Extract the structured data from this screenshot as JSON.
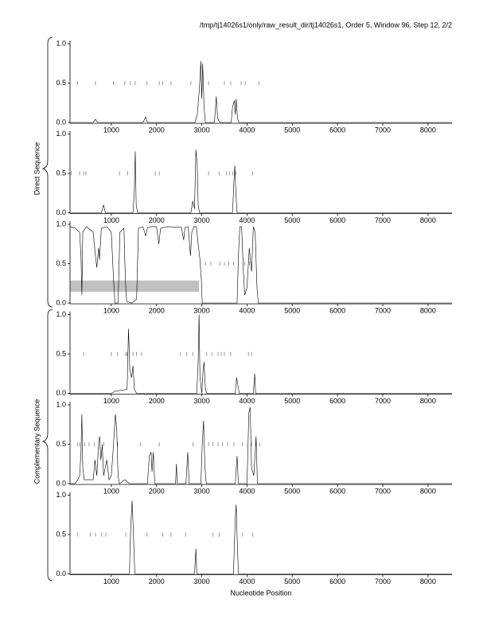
{
  "title": "/tmp/tj14026s1/only/raw_result_dir/tj14026s1, Order 5, Window 96, Step 12, 2/2",
  "xlabel": "Nucleotide Position",
  "groups": [
    {
      "label": "Direct Sequence"
    },
    {
      "label": "Complementary Sequence"
    }
  ],
  "chart_data": [
    {
      "type": "line",
      "color": "#000000",
      "xlim": [
        88,
        8530
      ],
      "ylim": [
        0,
        1
      ],
      "xticks": [
        1000,
        2000,
        3000,
        4000,
        5000,
        6000,
        7000,
        8000
      ],
      "yticks": [
        {
          "value": 0,
          "label": "0.0"
        },
        {
          "value": 0.5,
          "label": "0.5"
        },
        {
          "value": 1,
          "label": "1.0"
        }
      ],
      "x": [
        88,
        600,
        650,
        700,
        1700,
        1760,
        1800,
        2850,
        2900,
        2950,
        2980,
        3000,
        3020,
        3050,
        3080,
        3280,
        3320,
        3350,
        3400,
        3650,
        3680,
        3720,
        3740,
        3760,
        3790,
        3820,
        8530
      ],
      "values": [
        0,
        0,
        0.04,
        0,
        0,
        0.07,
        0,
        0,
        0.1,
        0.45,
        0.78,
        0.3,
        0.75,
        0.2,
        0,
        0,
        0.33,
        0.05,
        0,
        0,
        0.2,
        0.28,
        0.1,
        0.3,
        0.05,
        0,
        0
      ],
      "marker_level": 0.5,
      "markers": [
        250,
        650,
        1050,
        1300,
        1420,
        1530,
        1790,
        2060,
        2140,
        2320,
        2760,
        3150,
        3500,
        3640,
        3870,
        3960,
        4260
      ]
    },
    {
      "type": "line",
      "color": "#000000",
      "xlim": [
        88,
        8530
      ],
      "ylim": [
        0,
        1
      ],
      "xticks": [
        1000,
        2000,
        3000,
        4000,
        5000,
        6000,
        7000,
        8000
      ],
      "yticks": [
        {
          "value": 0,
          "label": "0.0"
        },
        {
          "value": 0.5,
          "label": "0.5"
        },
        {
          "value": 1,
          "label": "1.0"
        }
      ],
      "x": [
        88,
        780,
        830,
        870,
        1480,
        1510,
        1530,
        1550,
        1580,
        2760,
        2800,
        2840,
        2870,
        2900,
        2920,
        2950,
        3680,
        3710,
        3730,
        3750,
        3780,
        8530
      ],
      "values": [
        0,
        0,
        0.1,
        0,
        0,
        0.3,
        0.78,
        0.1,
        0,
        0,
        0.15,
        0.05,
        0.8,
        0.6,
        0.1,
        0,
        0,
        0.4,
        0.6,
        0.3,
        0,
        0
      ],
      "marker_level": 0.5,
      "markers": [
        120,
        300,
        390,
        440,
        1180,
        1360,
        1970,
        2060,
        3150,
        3380,
        3550,
        3610,
        3680,
        3750,
        4120
      ]
    },
    {
      "type": "line",
      "color": "#000000",
      "xlim": [
        88,
        8530
      ],
      "ylim": [
        0,
        1
      ],
      "xticks": [
        1000,
        2000,
        3000,
        4000,
        5000,
        6000,
        7000,
        8000
      ],
      "yticks": [
        {
          "value": 0,
          "label": "0.0"
        },
        {
          "value": 0.5,
          "label": "0.5"
        },
        {
          "value": 1,
          "label": "1.0"
        }
      ],
      "x": [
        88,
        200,
        300,
        330,
        350,
        370,
        450,
        600,
        650,
        680,
        720,
        740,
        780,
        900,
        1000,
        1050,
        1080,
        1150,
        1190,
        1280,
        1310,
        1340,
        1450,
        1560,
        1600,
        1700,
        1760,
        1800,
        1900,
        2000,
        2050,
        2090,
        2250,
        2550,
        2600,
        2630,
        2700,
        2750,
        2780,
        2830,
        2880,
        2920,
        2960,
        2990,
        3010,
        3780,
        3810,
        3840,
        3880,
        3920,
        3950,
        4000,
        4050,
        4100,
        4140,
        4180,
        4220,
        4250,
        8530
      ],
      "values": [
        0.97,
        0.95,
        0.9,
        0.6,
        0.1,
        0.9,
        0.97,
        0.9,
        0.6,
        0.45,
        0.7,
        0.55,
        0.95,
        0.97,
        0.9,
        0.3,
        0,
        0,
        0.9,
        0.95,
        0.3,
        0.02,
        0,
        0.05,
        0.95,
        0.97,
        0.85,
        0.96,
        0.97,
        0.97,
        0.75,
        0.95,
        0.97,
        0.96,
        0.8,
        0.96,
        0.97,
        0.6,
        0.9,
        0.97,
        0.97,
        0.75,
        0.55,
        0.3,
        0,
        0,
        0.6,
        0.97,
        0.97,
        0.4,
        0.1,
        0.2,
        0.7,
        0.4,
        0.97,
        0.9,
        0.2,
        0,
        0
      ],
      "marker_level": 0.5,
      "markers": [
        3080,
        3200,
        3400,
        3500,
        3600,
        3700,
        3950,
        4050
      ],
      "region": {
        "x": [
          88,
          2940
        ],
        "y": [
          0.143,
          0.286
        ],
        "color": "#c0c0c0"
      }
    },
    {
      "type": "line",
      "color": "#000000",
      "xlim": [
        88,
        8530
      ],
      "ylim": [
        0,
        1
      ],
      "xticks": [
        1000,
        2000,
        3000,
        4000,
        5000,
        6000,
        7000,
        8000
      ],
      "yticks": [
        {
          "value": 0,
          "label": "0.0"
        },
        {
          "value": 0.5,
          "label": "0.5"
        },
        {
          "value": 1,
          "label": "1.0"
        }
      ],
      "x": [
        88,
        1000,
        1100,
        1350,
        1380,
        1410,
        1450,
        1480,
        1510,
        1560,
        2890,
        2920,
        2940,
        2960,
        3000,
        3030,
        3050,
        3080,
        3110,
        3740,
        3770,
        3800,
        3830,
        4140,
        4170,
        4190,
        8530
      ],
      "values": [
        0,
        0,
        0.03,
        0.05,
        0.82,
        0.3,
        0.2,
        0.35,
        0.05,
        0,
        0,
        0.4,
        1.0,
        0.2,
        0,
        0.3,
        0.4,
        0.05,
        0,
        0,
        0.2,
        0.1,
        0,
        0,
        0.25,
        0,
        0
      ],
      "marker_level": 0.5,
      "markers": [
        390,
        1000,
        1140,
        1320,
        1350,
        1480,
        1560,
        1670,
        2530,
        2670,
        2800,
        3110,
        3220,
        3360,
        3430,
        3500,
        3640,
        4030,
        4100
      ]
    },
    {
      "type": "line",
      "color": "#000000",
      "xlim": [
        88,
        8530
      ],
      "ylim": [
        0,
        1
      ],
      "xticks": [
        1000,
        2000,
        3000,
        4000,
        5000,
        6000,
        7000,
        8000
      ],
      "yticks": [
        {
          "value": 0,
          "label": "0.0"
        },
        {
          "value": 0.5,
          "label": "0.5"
        },
        {
          "value": 1,
          "label": "1.0"
        }
      ],
      "x": [
        88,
        200,
        260,
        300,
        330,
        350,
        370,
        400,
        600,
        640,
        680,
        720,
        740,
        770,
        800,
        830,
        900,
        950,
        1000,
        1050,
        1090,
        1120,
        1150,
        1180,
        1300,
        1400,
        1800,
        1840,
        1880,
        1900,
        1930,
        1960,
        2420,
        2440,
        2460,
        2650,
        2690,
        2720,
        2980,
        3010,
        3040,
        3070,
        3100,
        3740,
        3780,
        3810,
        4000,
        4040,
        4070,
        4100,
        4150,
        4200,
        4230,
        8530
      ],
      "values": [
        0,
        0,
        0.05,
        0.1,
        0.4,
        0.88,
        0.2,
        0.05,
        0.05,
        0.3,
        0.1,
        0.5,
        0.6,
        0.3,
        0.5,
        0.1,
        0.3,
        0.05,
        0.1,
        0.5,
        0.88,
        0.7,
        0.1,
        0,
        0.05,
        0,
        0,
        0.35,
        0.4,
        0.15,
        0.4,
        0,
        0,
        0.25,
        0,
        0,
        0.4,
        0,
        0,
        0.5,
        0.8,
        0.2,
        0,
        0,
        0.35,
        0,
        0,
        0.9,
        0.97,
        0.2,
        0.1,
        0.6,
        0,
        0
      ],
      "marker_level": 0.5,
      "markers": [
        250,
        300,
        410,
        510,
        620,
        830,
        1140,
        1650,
        2060,
        2810,
        3150,
        3250,
        3360,
        3460,
        3570,
        3710,
        3900,
        4100,
        4200,
        4280
      ]
    },
    {
      "type": "line",
      "color": "#000000",
      "xlim": [
        88,
        8530
      ],
      "ylim": [
        0,
        1
      ],
      "xticks": [
        1000,
        2000,
        3000,
        4000,
        5000,
        6000,
        7000,
        8000
      ],
      "yticks": [
        {
          "value": 0,
          "label": "0.0"
        },
        {
          "value": 0.5,
          "label": "0.5"
        },
        {
          "value": 1,
          "label": "1.0"
        }
      ],
      "x": [
        88,
        1400,
        1430,
        1460,
        1490,
        1520,
        2840,
        2870,
        2890,
        3700,
        3740,
        3760,
        3790,
        3810,
        8530
      ],
      "values": [
        0,
        0,
        0.6,
        0.93,
        0.5,
        0,
        0,
        0.32,
        0,
        0,
        0.7,
        0.88,
        0.3,
        0,
        0
      ],
      "marker_level": 0.5,
      "markers": [
        250,
        530,
        650,
        790,
        880,
        1320,
        1790,
        2140,
        2320,
        2640,
        3250,
        3380,
        3900,
        4130
      ]
    }
  ]
}
